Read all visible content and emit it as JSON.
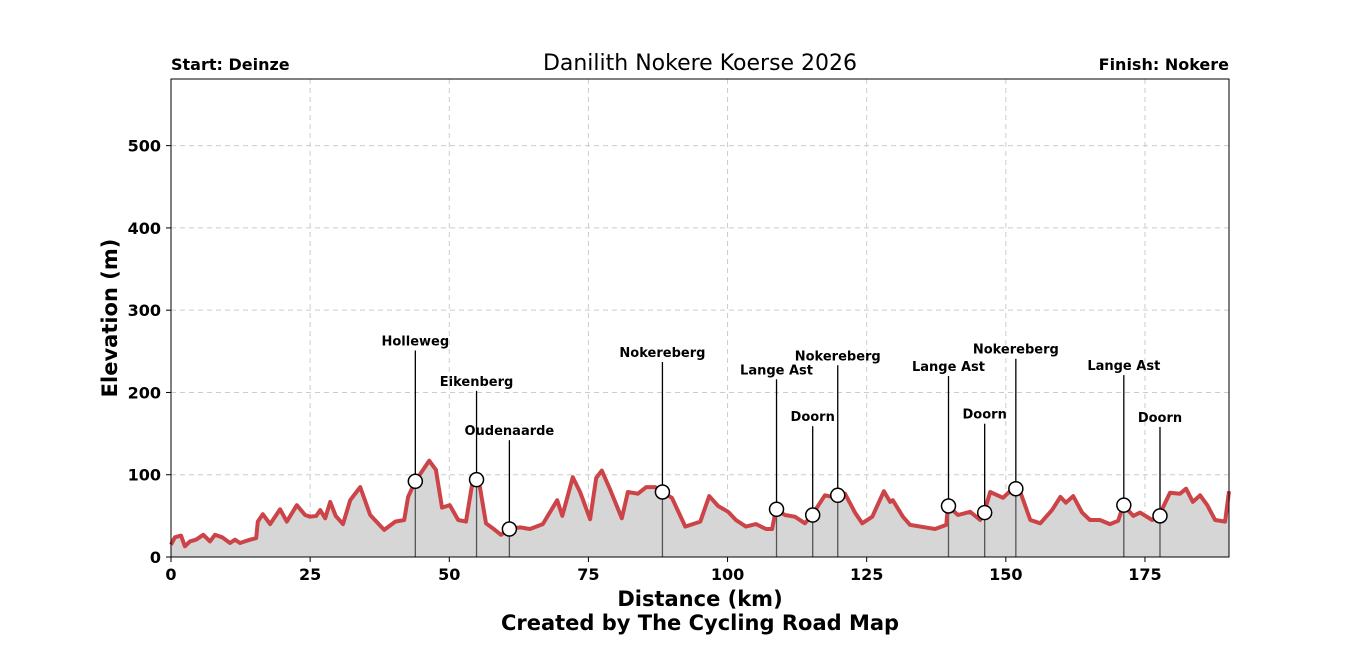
{
  "chart_data": {
    "type": "area",
    "title": "Danilith Nokere Koerse 2026",
    "start_label": "Start: Deinze",
    "finish_label": "Finish: Nokere",
    "xlabel": "Distance (km)",
    "ylabel": "Elevation (m)",
    "credit": "Created by The Cycling Road Map",
    "xlim": [
      0,
      190.1
    ],
    "ylim": [
      0,
      581
    ],
    "xticks": [
      0,
      25,
      50,
      75,
      100,
      125,
      150,
      175
    ],
    "yticks": [
      0,
      100,
      200,
      300,
      400,
      500
    ],
    "grid": true,
    "line_color": "#cc4448",
    "fill_color": "#d6d6d6",
    "profile": {
      "x": [
        0,
        0.7,
        1.8,
        2.5,
        3.4,
        4.5,
        5.8,
        7.0,
        7.9,
        9.2,
        10.6,
        11.5,
        12.4,
        14.2,
        15.3,
        15.6,
        16.5,
        17.8,
        19.6,
        20.8,
        22.6,
        24.1,
        25.0,
        26.1,
        26.8,
        27.7,
        28.6,
        29.6,
        30.9,
        32.2,
        34.0,
        35.8,
        38.3,
        40.3,
        41.9,
        42.6,
        43.9,
        45.3,
        46.4,
        47.6,
        48.7,
        50.1,
        51.6,
        53.0,
        54.1,
        54.8,
        55.5,
        56.6,
        58.2,
        59.3,
        60.7,
        62.7,
        64.5,
        66.8,
        69.4,
        70.3,
        72.2,
        73.5,
        75.3,
        76.4,
        77.4,
        78.9,
        81.0,
        82.1,
        83.9,
        85.4,
        87.0,
        88.2,
        90.0,
        92.4,
        95.1,
        96.7,
        98.3,
        100.1,
        101.5,
        103.3,
        105.1,
        106.9,
        108.0,
        108.7,
        110.3,
        112.1,
        113.9,
        115.2,
        117.5,
        118.9,
        119.7,
        121.1,
        122.9,
        124.2,
        126.0,
        128.1,
        129.2,
        129.7,
        131.5,
        132.8,
        136.4,
        137.3,
        139.3,
        139.6,
        141.4,
        143.6,
        145.4,
        146.1,
        147.2,
        149.5,
        151.1,
        151.7,
        152.6,
        154.4,
        156.2,
        158.3,
        159.8,
        160.8,
        162.1,
        163.7,
        165.1,
        166.9,
        168.7,
        170.2,
        171.1,
        172.9,
        174.1,
        176.3,
        177.5,
        179.5,
        181.3,
        182.4,
        183.6,
        184.9,
        186.2,
        187.6,
        189.4,
        190.1
      ],
      "y": [
        15,
        24,
        26,
        13,
        19,
        21,
        27,
        19,
        27,
        24,
        17,
        21,
        17,
        21,
        23,
        43,
        52,
        40,
        58,
        43,
        63,
        51,
        49,
        50,
        57,
        47,
        67,
        50,
        40,
        69,
        85,
        51,
        33,
        43,
        45,
        73,
        92,
        106,
        117,
        106,
        60,
        63,
        45,
        43,
        88,
        94,
        85,
        41,
        33,
        27,
        34,
        36,
        34,
        40,
        69,
        50,
        97,
        79,
        46,
        96,
        105,
        82,
        47,
        79,
        77,
        85,
        85,
        79,
        72,
        37,
        43,
        74,
        62,
        55,
        45,
        37,
        40,
        34,
        34,
        58,
        51,
        49,
        41,
        51,
        75,
        73,
        75,
        77,
        54,
        41,
        49,
        80,
        67,
        69,
        49,
        39,
        35,
        34,
        39,
        62,
        51,
        55,
        45,
        54,
        79,
        72,
        82,
        83,
        79,
        45,
        41,
        57,
        73,
        66,
        74,
        54,
        45,
        45,
        40,
        44,
        63,
        50,
        54,
        45,
        50,
        78,
        77,
        83,
        67,
        75,
        63,
        45,
        43,
        80
      ]
    },
    "climbs": [
      {
        "name": "Holleweg",
        "km": 43.9,
        "elevation": 92,
        "label_height": 251
      },
      {
        "name": "Eikenberg",
        "km": 54.9,
        "elevation": 94,
        "label_height": 202
      },
      {
        "name": "Oudenaarde",
        "km": 60.8,
        "elevation": 34,
        "label_height": 142
      },
      {
        "name": "Nokereberg",
        "km": 88.3,
        "elevation": 79,
        "label_height": 237
      },
      {
        "name": "Lange Ast",
        "km": 108.8,
        "elevation": 58,
        "label_height": 216
      },
      {
        "name": "Doorn",
        "km": 115.3,
        "elevation": 51,
        "label_height": 159
      },
      {
        "name": "Nokereberg",
        "km": 119.8,
        "elevation": 75,
        "label_height": 233
      },
      {
        "name": "Lange Ast",
        "km": 139.7,
        "elevation": 62,
        "label_height": 220
      },
      {
        "name": "Doorn",
        "km": 146.2,
        "elevation": 54,
        "label_height": 162
      },
      {
        "name": "Nokereberg",
        "km": 151.8,
        "elevation": 83,
        "label_height": 241
      },
      {
        "name": "Lange Ast",
        "km": 171.2,
        "elevation": 63,
        "label_height": 221
      },
      {
        "name": "Doorn",
        "km": 177.7,
        "elevation": 50,
        "label_height": 158
      }
    ]
  }
}
